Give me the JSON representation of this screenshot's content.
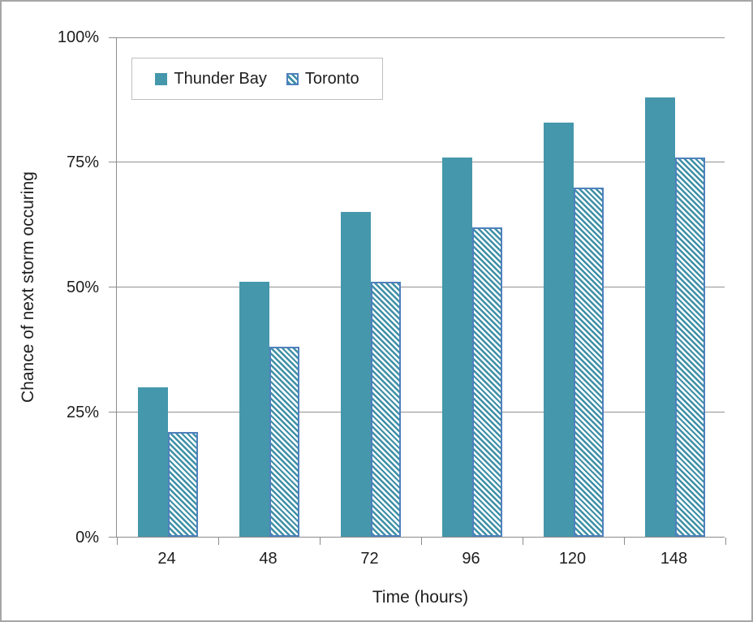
{
  "chart_data": {
    "type": "bar",
    "title": "",
    "categories": [
      "24",
      "48",
      "72",
      "96",
      "120",
      "148"
    ],
    "series": [
      {
        "name": "Thunder Bay",
        "values": [
          30,
          51,
          65,
          76,
          83,
          88
        ],
        "style": "solid"
      },
      {
        "name": "Toronto",
        "values": [
          21,
          38,
          51,
          62,
          70,
          76
        ],
        "style": "diagonal-hatch"
      }
    ],
    "xlabel": "Time (hours)",
    "ylabel": "Chance of next storm occuring",
    "ylim": [
      0,
      100
    ],
    "yticks": [
      0,
      25,
      50,
      75,
      100
    ],
    "ytick_labels": [
      "0%",
      "25%",
      "50%",
      "75%",
      "100%"
    ],
    "grid": true,
    "legend_position": "top-left"
  },
  "colors": {
    "bar_solid": "#4597AB",
    "hatch_stripe": "#3D8FA6",
    "hatch_border": "#4F81BD",
    "gridline": "#919191",
    "axis": "#8C8C8C",
    "text": "#1E1E1E",
    "frame_border": "#A6A6A6",
    "legend_border": "#BFBFBF"
  }
}
